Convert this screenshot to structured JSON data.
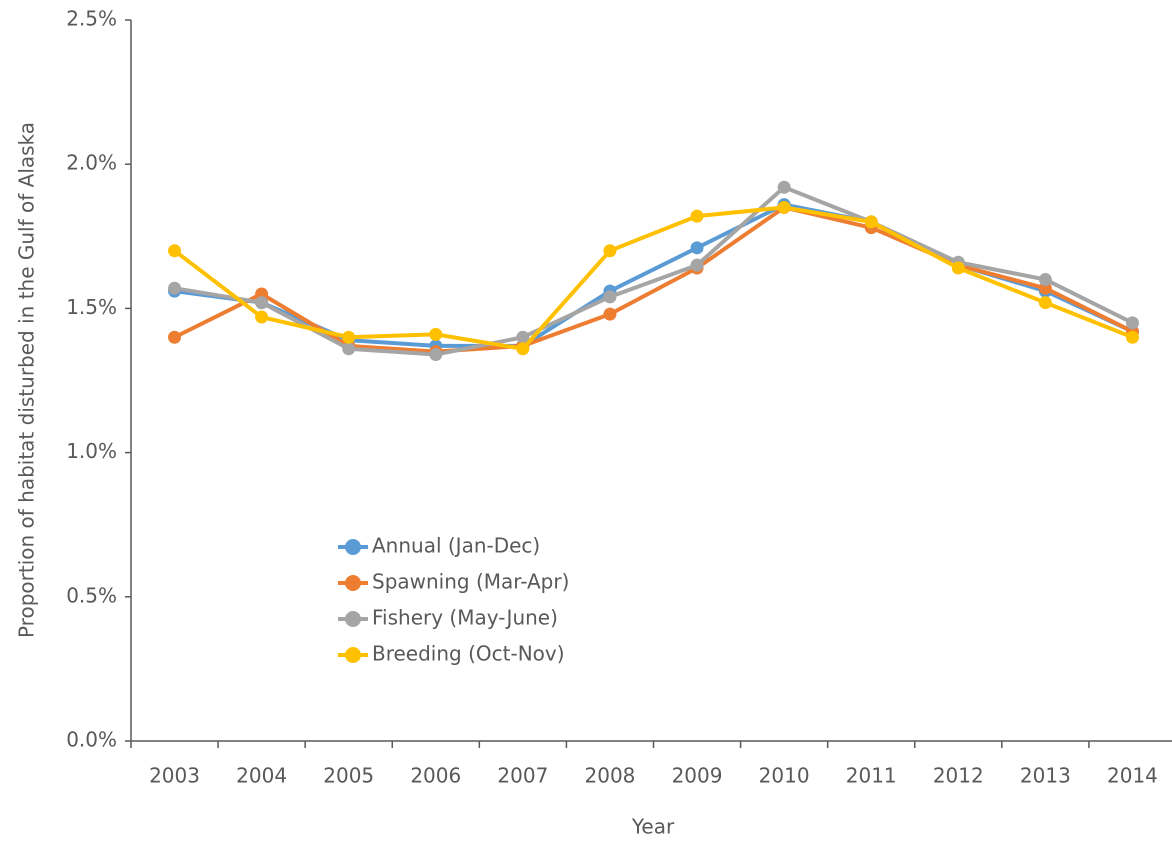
{
  "chart_data": {
    "type": "line",
    "y_label": "Proportion of habitat disturbed in the Gulf of Alaska",
    "x_label": "Year",
    "categories": [
      "2003",
      "2004",
      "2005",
      "2006",
      "2007",
      "2008",
      "2009",
      "2010",
      "2011",
      "2012",
      "2013",
      "2014"
    ],
    "series": [
      {
        "name": "Annual (Jan-Dec)",
        "color": "#5b9bd5",
        "values": [
          1.56,
          1.52,
          1.39,
          1.37,
          1.37,
          1.56,
          1.71,
          1.86,
          1.8,
          1.65,
          1.56,
          1.42
        ]
      },
      {
        "name": "Spawning (Mar-Apr)",
        "color": "#ed7d31",
        "values": [
          1.4,
          1.55,
          1.37,
          1.35,
          1.37,
          1.48,
          1.64,
          1.85,
          1.78,
          1.65,
          1.57,
          1.42
        ]
      },
      {
        "name": "Fishery (May-June)",
        "color": "#a5a5a5",
        "values": [
          1.57,
          1.52,
          1.36,
          1.34,
          1.4,
          1.54,
          1.65,
          1.92,
          1.8,
          1.66,
          1.6,
          1.45
        ]
      },
      {
        "name": "Breeding (Oct-Nov)",
        "color": "#ffc000",
        "values": [
          1.7,
          1.47,
          1.4,
          1.41,
          1.36,
          1.7,
          1.82,
          1.85,
          1.8,
          1.64,
          1.52,
          1.4
        ]
      }
    ],
    "ylim": [
      0,
      2.5
    ],
    "yticks": [
      {
        "value": 0,
        "label": "0.0%"
      },
      {
        "value": 0.5,
        "label": "0.5%"
      },
      {
        "value": 1,
        "label": "1.0%"
      },
      {
        "value": 1.5,
        "label": "1.5%"
      },
      {
        "value": 2,
        "label": "2.0%"
      },
      {
        "value": 2.5,
        "label": "2.5%"
      }
    ],
    "grid": false
  }
}
